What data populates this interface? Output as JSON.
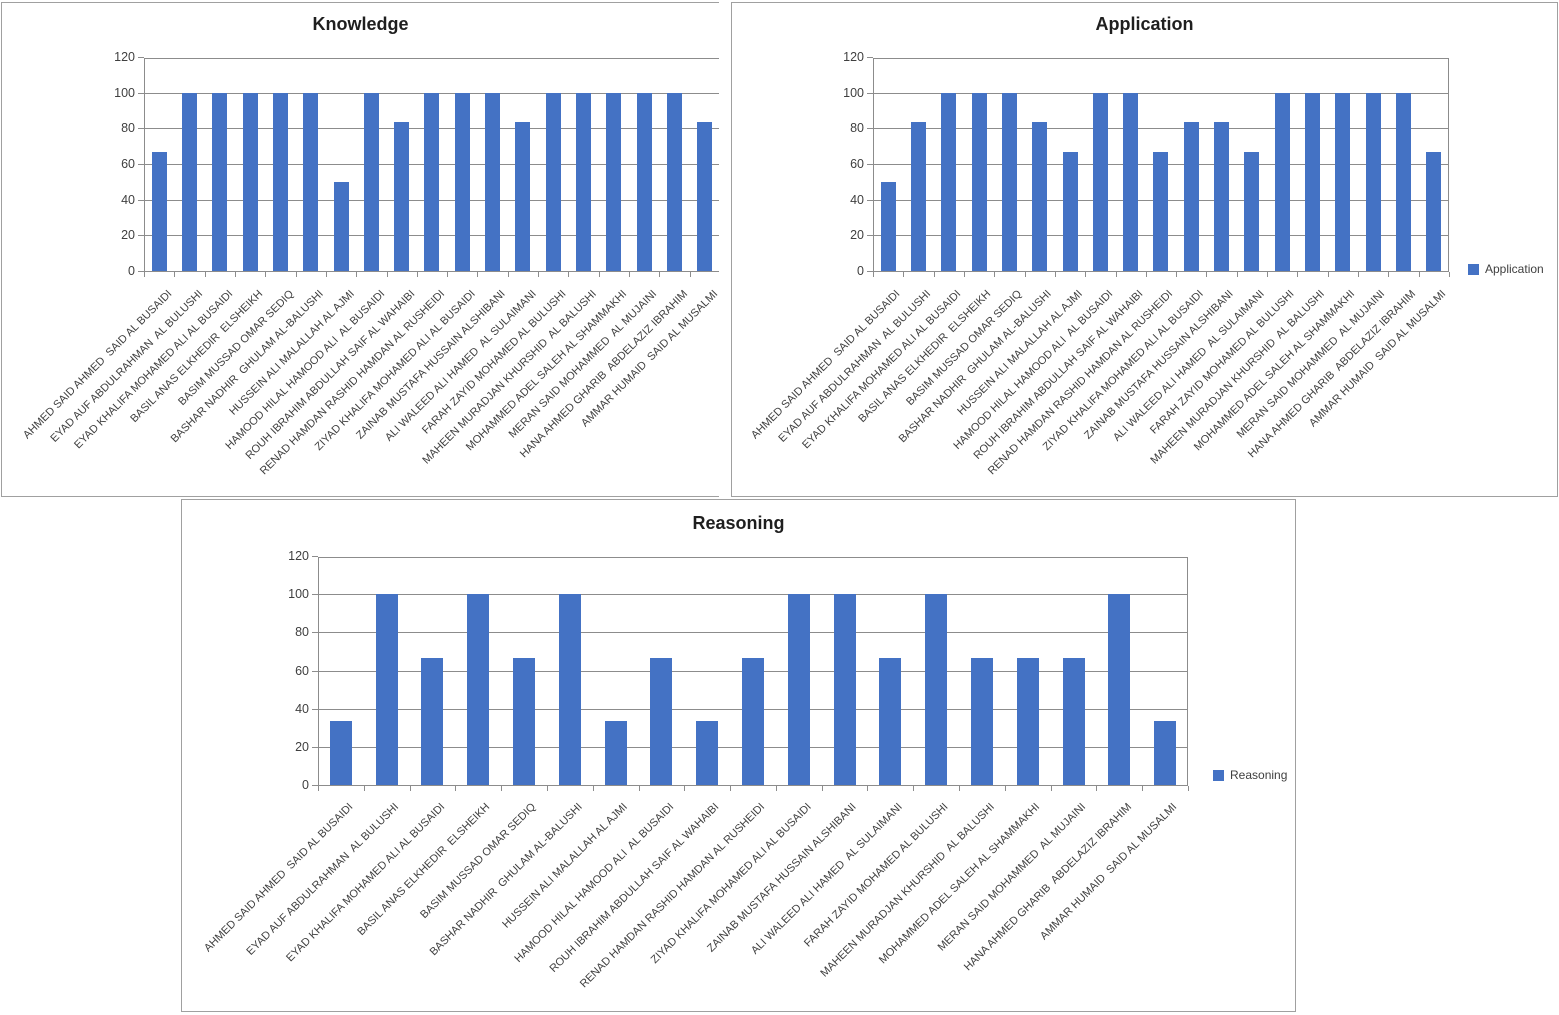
{
  "colors": {
    "bar": "#4472C4",
    "gridline": "#8C8C8C",
    "axis": "#8C8C8C",
    "panel_border": "#A0A0A0",
    "title_text": "#1F1F1F",
    "tick_label_text": "#3F3F3F",
    "legend_text": "#404040",
    "background": "#FFFFFF"
  },
  "chart_data": [
    {
      "type": "bar",
      "title": "Knowledge",
      "legend": null,
      "grid": true,
      "ylim": [
        0,
        120
      ],
      "yticks": [
        0,
        20,
        40,
        60,
        80,
        100,
        120
      ],
      "categories": [
        "AHMED SAID AHMED  SAID AL BUSAIDI",
        "EYAD AUF ABDULRAHMAN  AL BULUSHI",
        "EYAD KHALIFA MOHAMED ALI AL BUSAIDI",
        "BASIL ANAS ELKHEDIR  ELSHEIKH",
        "BASIM MUSSAD OMAR SEDIQ",
        "BASHAR NADHIR  GHULAM AL-BALUSHI",
        "HUSSEIN ALI MALALLAH AL AJMI",
        "HAMOOD HILAL HAMOOD ALI  AL BUSAIDI",
        "ROUH IBRAHIM ABDULLAH SAIF AL WAHAIBI",
        "RENAD HAMDAN RASHID HAMDAN AL RUSHEIDI",
        "ZIYAD KHALIFA MOHAMED ALI AL BUSAIDI",
        "ZAINAB MUSTAFA HUSSAIN ALSHIBANI",
        "ALI WALEED ALI HAMED  AL SULAIMANI",
        "FARAH ZAYID MOHAMED AL BULUSHI",
        "MAHEEN MURADJAN KHURSHID  AL BALUSHI",
        "MOHAMMED ADEL SALEH AL SHAMMAKHI",
        "MERAN SAID MOHAMMED  AL MUJAINI",
        "HANA AHMED GHARIB  ABDELAZIZ IBRAHIM",
        "AMMAR HUMAID  SAID AL MUSALMI"
      ],
      "values": [
        66.7,
        100,
        100,
        100,
        100,
        100,
        50,
        100,
        83.3,
        100,
        100,
        100,
        83.3,
        100,
        100,
        100,
        100,
        100,
        83.3
      ]
    },
    {
      "type": "bar",
      "title": "Application",
      "legend": "Application",
      "legend_position": "right",
      "grid": true,
      "ylim": [
        0,
        120
      ],
      "yticks": [
        0,
        20,
        40,
        60,
        80,
        100,
        120
      ],
      "categories": [
        "AHMED SAID AHMED  SAID AL BUSAIDI",
        "EYAD AUF ABDULRAHMAN  AL BULUSHI",
        "EYAD KHALIFA MOHAMED ALI AL BUSAIDI",
        "BASIL ANAS ELKHEDIR  ELSHEIKH",
        "BASIM MUSSAD OMAR SEDIQ",
        "BASHAR NADHIR  GHULAM AL-BALUSHI",
        "HUSSEIN ALI MALALLAH AL AJMI",
        "HAMOOD HILAL HAMOOD ALI  AL BUSAIDI",
        "ROUH IBRAHIM ABDULLAH SAIF AL WAHAIBI",
        "RENAD HAMDAN RASHID HAMDAN AL RUSHEIDI",
        "ZIYAD KHALIFA MOHAMED ALI AL BUSAIDI",
        "ZAINAB MUSTAFA HUSSAIN ALSHIBANI",
        "ALI WALEED ALI HAMED  AL SULAIMANI",
        "FARAH ZAYID MOHAMED AL BULUSHI",
        "MAHEEN MURADJAN KHURSHID  AL BALUSHI",
        "MOHAMMED ADEL SALEH AL SHAMMAKHI",
        "MERAN SAID MOHAMMED  AL MUJAINI",
        "HANA AHMED GHARIB  ABDELAZIZ IBRAHIM",
        "AMMAR HUMAID  SAID AL MUSALMI"
      ],
      "values": [
        50,
        83.3,
        100,
        100,
        100,
        83.3,
        66.7,
        100,
        100,
        66.7,
        83.3,
        83.3,
        66.7,
        100,
        100,
        100,
        100,
        100,
        66.7
      ]
    },
    {
      "type": "bar",
      "title": "Reasoning",
      "legend": "Reasoning",
      "legend_position": "right",
      "grid": true,
      "ylim": [
        0,
        120
      ],
      "yticks": [
        0,
        20,
        40,
        60,
        80,
        100,
        120
      ],
      "categories": [
        "AHMED SAID AHMED  SAID AL BUSAIDI",
        "EYAD AUF ABDULRAHMAN  AL BULUSHI",
        "EYAD KHALIFA MOHAMED ALI AL BUSAIDI",
        "BASIL ANAS ELKHEDIR  ELSHEIKH",
        "BASIM MUSSAD OMAR SEDIQ",
        "BASHAR NADHIR  GHULAM AL-BALUSHI",
        "HUSSEIN ALI MALALLAH AL AJMI",
        "HAMOOD HILAL HAMOOD ALI  AL BUSAIDI",
        "ROUH IBRAHIM ABDULLAH SAIF AL WAHAIBI",
        "RENAD HAMDAN RASHID HAMDAN AL RUSHEIDI",
        "ZIYAD KHALIFA MOHAMED ALI AL BUSAIDI",
        "ZAINAB MUSTAFA HUSSAIN ALSHIBANI",
        "ALI WALEED ALI HAMED  AL SULAIMANI",
        "FARAH ZAYID MOHAMED AL BULUSHI",
        "MAHEEN MURADJAN KHURSHID  AL BALUSHI",
        "MOHAMMED ADEL SALEH AL SHAMMAKHI",
        "MERAN SAID MOHAMMED  AL MUJAINI",
        "HANA AHMED GHARIB  ABDELAZIZ IBRAHIM",
        "AMMAR HUMAID  SAID AL MUSALMI"
      ],
      "values": [
        33.3,
        100,
        66.7,
        100,
        66.7,
        100,
        33.3,
        66.7,
        33.3,
        66.7,
        100,
        100,
        66.7,
        100,
        66.7,
        66.7,
        66.7,
        100,
        33.3
      ]
    }
  ]
}
